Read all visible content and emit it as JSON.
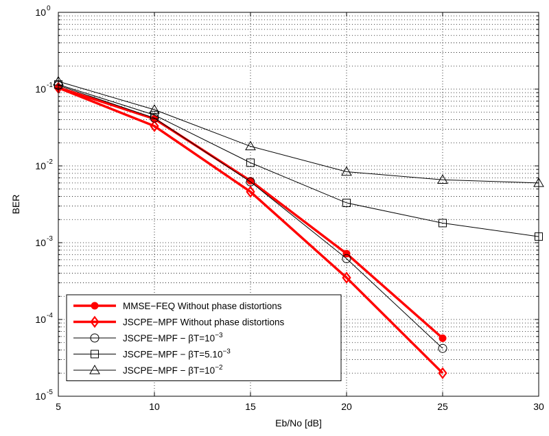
{
  "chart_data": {
    "type": "line",
    "title": "",
    "xlabel": "Eb/No [dB]",
    "ylabel": "BER",
    "xlim": [
      5,
      30
    ],
    "ylim": [
      1e-05,
      1
    ],
    "yscale": "log",
    "grid": true,
    "grid_style": "dotted",
    "legend_position": "bottom-left",
    "x_ticks": [
      5,
      10,
      15,
      20,
      25,
      30
    ],
    "x_tick_labels": [
      "5",
      "10",
      "15",
      "20",
      "25",
      "30"
    ],
    "y_ticks": [
      1e-05,
      0.0001,
      0.001,
      0.01,
      0.1,
      1
    ],
    "y_tick_labels": [
      {
        "base": "10",
        "exp": "-5"
      },
      {
        "base": "10",
        "exp": "-4"
      },
      {
        "base": "10",
        "exp": "-3"
      },
      {
        "base": "10",
        "exp": "-2"
      },
      {
        "base": "10",
        "exp": "-1"
      },
      {
        "base": "10",
        "exp": "0"
      }
    ],
    "series": [
      {
        "name": "MMSE−FEQ  Without phase distortions",
        "x": [
          5,
          10,
          15,
          20,
          25
        ],
        "y": [
          0.105,
          0.041,
          0.0064,
          0.00072,
          5.7e-05
        ],
        "color": "#ff0000",
        "marker": "filled-circle",
        "line": "thick"
      },
      {
        "name": "JSCPE−MPF Without phase distortions",
        "x": [
          5,
          10,
          15,
          20,
          25
        ],
        "y": [
          0.104,
          0.033,
          0.0046,
          0.00035,
          2e-05
        ],
        "color": "#ff0000",
        "marker": "diamond",
        "line": "thick"
      },
      {
        "name": "JSCPE−MPF − βT=10",
        "name_sup": "−3",
        "x": [
          5,
          10,
          15,
          20,
          25
        ],
        "y": [
          0.112,
          0.042,
          0.0062,
          0.00062,
          4.2e-05
        ],
        "color": "#000000",
        "marker": "circle",
        "line": "thin"
      },
      {
        "name": "JSCPE−MPF − βT=5.10",
        "name_sup": "−3",
        "x": [
          5,
          10,
          15,
          20,
          25,
          30
        ],
        "y": [
          0.115,
          0.046,
          0.011,
          0.0033,
          0.0018,
          0.0012
        ],
        "color": "#000000",
        "marker": "square",
        "line": "thin"
      },
      {
        "name": "JSCPE−MPF − βT=10",
        "name_sup": "−2",
        "x": [
          5,
          10,
          15,
          20,
          25,
          30
        ],
        "y": [
          0.126,
          0.054,
          0.018,
          0.0084,
          0.0066,
          0.006
        ],
        "color": "#000000",
        "marker": "triangle",
        "line": "thin"
      }
    ]
  }
}
